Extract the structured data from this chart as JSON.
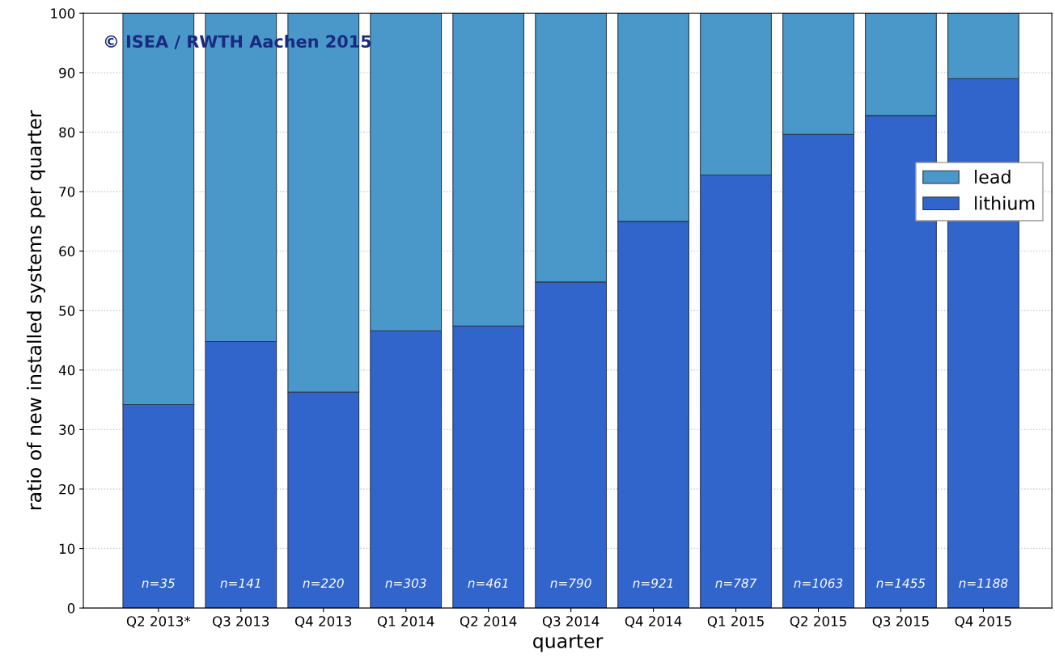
{
  "chart_data": {
    "type": "bar",
    "stacked": true,
    "xlabel": "quarter",
    "ylabel": "ratio of new installed systems per quarter",
    "categories": [
      "Q2 2013*",
      "Q3 2013",
      "Q4 2013",
      "Q1 2014",
      "Q2 2014",
      "Q3 2014",
      "Q4 2014",
      "Q1 2015",
      "Q2 2015",
      "Q3 2015",
      "Q4 2015"
    ],
    "series": [
      {
        "name": "lithium",
        "color": "#3165cc",
        "values": [
          34.2,
          44.8,
          36.3,
          46.6,
          47.4,
          54.8,
          65.0,
          72.8,
          79.6,
          82.8,
          89.0
        ]
      },
      {
        "name": "lead",
        "color": "#4a98c9",
        "values": [
          65.8,
          55.2,
          63.7,
          53.4,
          52.6,
          45.2,
          35.0,
          27.2,
          20.4,
          17.2,
          11.0
        ]
      }
    ],
    "ylim": [
      0,
      100
    ],
    "yticks": [
      0,
      10,
      20,
      30,
      40,
      50,
      60,
      70,
      80,
      90,
      100
    ],
    "grid": "y",
    "legend": "right",
    "annotations": [
      "© ISEA / RWTH Aachen 2015",
      "n=35",
      "n=141",
      "n=220",
      "n=303",
      "n=461",
      "n=790",
      "n=921",
      "n=787",
      "n=1063",
      "n=1455",
      "n=1188"
    ]
  }
}
